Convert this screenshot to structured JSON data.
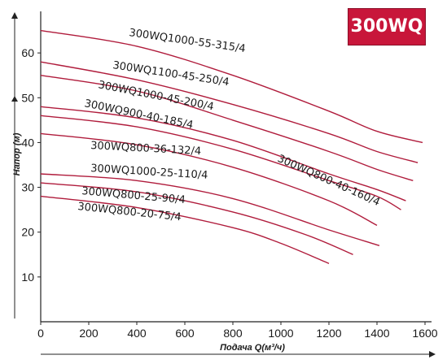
{
  "badge": {
    "text": "300WQ",
    "color": "#c8163a"
  },
  "chart_data": {
    "type": "line",
    "title": "300WQ",
    "xlabel": "Подача Q(м³/ч)",
    "ylabel": "Напор (м)",
    "xlim": [
      0,
      1600
    ],
    "ylim": [
      0,
      70
    ],
    "xticks": [
      "0",
      "200",
      "400",
      "600",
      "800",
      "1000",
      "1200",
      "1400",
      "1600"
    ],
    "yticks": [
      "10",
      "20",
      "30",
      "40",
      "50",
      "60"
    ],
    "grid": false,
    "line_color": "#b01c3c",
    "series": [
      {
        "name": "300WQ1000-55-315/4",
        "x": [
          0,
          400,
          800,
          1200,
          1400,
          1590
        ],
        "y": [
          65,
          61.5,
          55,
          47,
          42.5,
          40
        ]
      },
      {
        "name": "300WQ1100-45-250/4",
        "x": [
          0,
          400,
          800,
          1200,
          1400,
          1570
        ],
        "y": [
          58,
          54,
          48.5,
          42,
          38,
          35.5
        ]
      },
      {
        "name": "300WQ1000-45-200/4",
        "x": [
          0,
          400,
          800,
          1200,
          1400,
          1550
        ],
        "y": [
          55,
          51.5,
          45,
          38,
          34,
          31.5
        ]
      },
      {
        "name": "300WQ900-40-185/4",
        "x": [
          0,
          400,
          800,
          1200,
          1400,
          1520
        ],
        "y": [
          48,
          45.5,
          40.5,
          33,
          29.5,
          27
        ]
      },
      {
        "name": "300WQ800-40-160/4",
        "x": [
          0,
          400,
          800,
          1200,
          1400,
          1500
        ],
        "y": [
          46,
          43.5,
          38.5,
          31.5,
          28,
          25
        ]
      },
      {
        "name": "300WQ800-36-132/4",
        "x": [
          0,
          400,
          800,
          1200,
          1400
        ],
        "y": [
          42,
          39.5,
          34.5,
          27,
          21.5
        ]
      },
      {
        "name": "300WQ1000-25-110/4",
        "x": [
          0,
          400,
          800,
          1200,
          1410
        ],
        "y": [
          33,
          31.5,
          27.5,
          20.5,
          17
        ]
      },
      {
        "name": "300WQ800-25-90/4",
        "x": [
          0,
          400,
          800,
          1100,
          1300
        ],
        "y": [
          31,
          29,
          24.5,
          19.5,
          15
        ]
      },
      {
        "name": "300WQ800-20-75/4",
        "x": [
          0,
          400,
          800,
          1000,
          1200
        ],
        "y": [
          28,
          25.5,
          21,
          17.5,
          13
        ]
      }
    ]
  }
}
